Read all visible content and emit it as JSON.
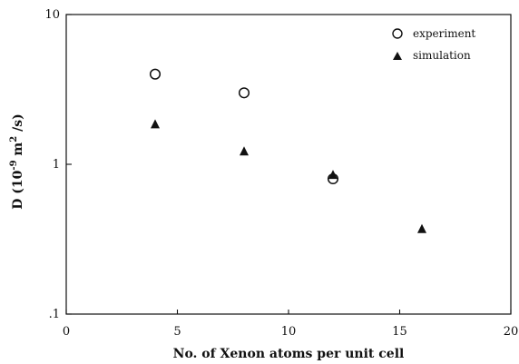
{
  "chart_data": {
    "type": "scatter",
    "xlabel": "No. of Xenon atoms per unit cell",
    "ylabel": {
      "prefix": "D (10",
      "exp_a": "-9",
      "mid": "m",
      "exp_b": "2",
      "suffix": "/s)"
    },
    "xlim": [
      0,
      20
    ],
    "ylim": [
      0.1,
      10
    ],
    "y_scale": "log",
    "grid": false,
    "legend_position": "top-right",
    "x_ticks": [
      {
        "value": 0,
        "label": "0"
      },
      {
        "value": 5,
        "label": "5"
      },
      {
        "value": 10,
        "label": "10"
      },
      {
        "value": 15,
        "label": "15"
      },
      {
        "value": 20,
        "label": "20"
      }
    ],
    "y_ticks": [
      {
        "value": 0.1,
        "label": ".1"
      },
      {
        "value": 1,
        "label": "1"
      },
      {
        "value": 10,
        "label": "10"
      }
    ],
    "series": [
      {
        "name": "experiment",
        "marker": "circle-open",
        "color": "#111111",
        "points": [
          {
            "x": 4,
            "y": 4.0
          },
          {
            "x": 8,
            "y": 3.0
          },
          {
            "x": 12,
            "y": 0.8
          }
        ]
      },
      {
        "name": "simulation",
        "marker": "triangle-filled",
        "color": "#111111",
        "points": [
          {
            "x": 4,
            "y": 1.85
          },
          {
            "x": 8,
            "y": 1.22
          },
          {
            "x": 12,
            "y": 0.85
          },
          {
            "x": 16,
            "y": 0.37
          }
        ]
      }
    ]
  }
}
